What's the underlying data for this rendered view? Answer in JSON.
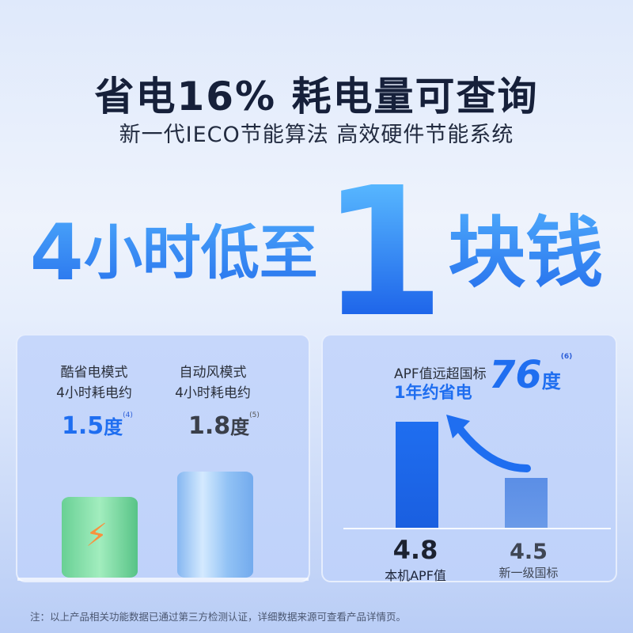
{
  "header": {
    "title": "省电16% 耗电量可查询",
    "subtitle": "新一代IECO节能算法 高效硬件节能系统"
  },
  "headline": {
    "part1": "4",
    "part2": "小时低至",
    "big": "1",
    "part3": "块钱"
  },
  "left_panel": {
    "modes": [
      {
        "line1": "酷省电模式",
        "line2": "4小时耗电约",
        "value": "1.5",
        "unit": "度",
        "note": "(4)",
        "color": "#1f6ef0"
      },
      {
        "line1": "自动风模式",
        "line2": "4小时耗电约",
        "value": "1.8",
        "unit": "度",
        "note": "(5)",
        "color": "#3a3f4a"
      }
    ],
    "icons": [
      "battery-green-lightning-icon",
      "battery-blue-cylinder-icon"
    ]
  },
  "right_panel": {
    "line1": "APF值远超国标",
    "line2": "1年约省电",
    "highlight": "76",
    "unit": "度",
    "note": "(6)",
    "bars": [
      {
        "value": "4.8",
        "label": "本机APF值",
        "color": "#1f6ef0"
      },
      {
        "value": "4.5",
        "label": "新一级国标",
        "color": "#5b8ee6"
      }
    ]
  },
  "footer": "注：以上产品相关功能数据已通过第三方检测认证，详细数据来源可查看产品详情页。"
}
